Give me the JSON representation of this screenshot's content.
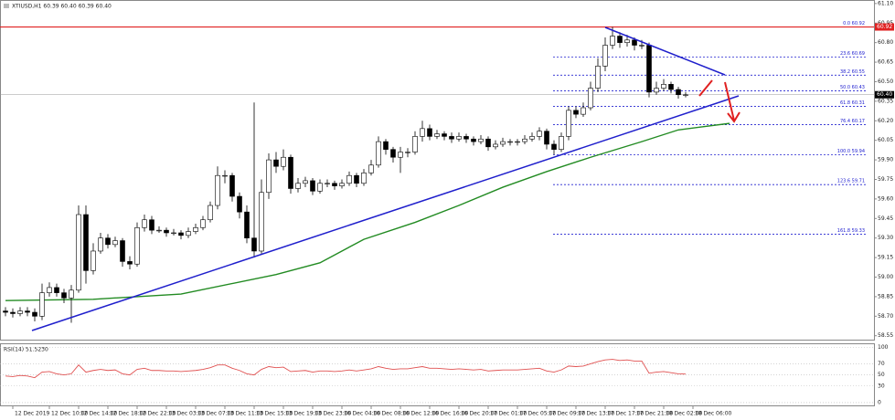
{
  "chart_data": [
    {
      "type": "candlestick",
      "title": "XTIUSD,H1  60.39 60.40 60.39 60.40",
      "up_color": "#ffffff",
      "down_color": "#000000",
      "open": [
        58.74,
        58.73,
        58.72,
        58.74,
        58.73,
        58.7,
        58.88,
        58.92,
        58.88,
        58.84,
        58.9,
        59.48,
        59.05,
        59.2,
        59.3,
        59.25,
        59.28,
        59.12,
        59.1,
        59.38,
        59.44,
        59.36,
        59.36,
        59.34,
        59.34,
        59.32,
        59.35,
        59.38,
        59.44,
        59.55,
        59.78,
        59.78,
        59.62,
        59.5,
        59.3,
        59.2,
        59.65,
        59.9,
        59.85,
        59.92,
        59.68,
        59.72,
        59.74,
        59.66,
        59.72,
        59.72,
        59.7,
        59.72,
        59.78,
        59.72,
        59.8,
        59.86,
        60.04,
        59.98,
        59.92,
        59.96,
        59.96,
        60.08,
        60.14,
        60.08,
        60.1,
        60.08,
        60.06,
        60.08,
        60.06,
        60.04,
        60.06,
        60.0,
        60.02,
        60.04,
        60.04,
        60.04,
        60.06,
        60.08,
        60.12,
        60.02,
        59.98,
        60.08,
        60.28,
        60.25,
        60.3,
        60.45,
        60.62,
        60.78,
        60.85,
        60.8,
        60.82,
        60.78,
        60.78,
        60.42,
        60.45,
        60.48,
        60.44,
        60.4
      ],
      "high": [
        58.77,
        58.76,
        58.77,
        58.77,
        58.76,
        58.95,
        58.96,
        58.95,
        58.91,
        58.94,
        59.55,
        59.55,
        59.26,
        59.34,
        59.33,
        59.31,
        59.3,
        59.16,
        59.42,
        59.48,
        59.47,
        59.39,
        59.38,
        59.37,
        59.36,
        59.38,
        59.41,
        59.47,
        59.58,
        59.85,
        59.82,
        59.8,
        59.65,
        59.55,
        60.34,
        59.75,
        59.95,
        59.96,
        59.98,
        59.94,
        59.76,
        59.77,
        59.76,
        59.75,
        59.75,
        59.74,
        59.75,
        59.81,
        59.8,
        59.83,
        59.9,
        60.08,
        60.06,
        60.0,
        60.0,
        59.99,
        60.12,
        60.2,
        60.17,
        60.13,
        60.12,
        60.11,
        60.11,
        60.1,
        60.08,
        60.09,
        60.08,
        60.05,
        60.07,
        60.06,
        60.06,
        60.09,
        60.11,
        60.15,
        60.14,
        60.05,
        60.11,
        60.31,
        60.31,
        60.34,
        60.5,
        60.68,
        60.84,
        60.92,
        60.88,
        60.86,
        60.84,
        60.82,
        60.8,
        60.5,
        60.52,
        60.5,
        60.46,
        60.42
      ],
      "low": [
        58.7,
        58.69,
        58.7,
        58.7,
        58.66,
        58.67,
        58.85,
        58.85,
        58.8,
        58.65,
        58.88,
        58.95,
        59.02,
        59.18,
        59.22,
        59.23,
        59.08,
        59.06,
        59.08,
        59.35,
        59.33,
        59.34,
        59.31,
        59.32,
        59.29,
        59.3,
        59.33,
        59.36,
        59.42,
        59.52,
        59.72,
        59.58,
        59.45,
        59.26,
        59.15,
        59.18,
        59.6,
        59.8,
        59.82,
        59.64,
        59.65,
        59.69,
        59.63,
        59.64,
        59.69,
        59.67,
        59.68,
        59.7,
        59.69,
        59.7,
        59.78,
        59.84,
        59.94,
        59.88,
        59.8,
        59.92,
        59.94,
        60.04,
        60.05,
        60.06,
        60.05,
        60.03,
        60.04,
        60.03,
        60.01,
        60.02,
        59.97,
        59.98,
        60.0,
        60.01,
        60.01,
        60.02,
        60.04,
        60.05,
        59.98,
        59.94,
        59.96,
        60.05,
        60.22,
        60.23,
        60.28,
        60.42,
        60.58,
        60.75,
        60.76,
        60.77,
        60.74,
        60.75,
        60.38,
        60.4,
        60.43,
        60.41,
        60.37,
        60.38
      ],
      "close": [
        58.73,
        58.72,
        58.74,
        58.73,
        58.7,
        58.88,
        58.92,
        58.88,
        58.84,
        58.9,
        59.48,
        59.05,
        59.2,
        59.3,
        59.25,
        59.28,
        59.12,
        59.1,
        59.38,
        59.44,
        59.36,
        59.36,
        59.34,
        59.34,
        59.32,
        59.35,
        59.38,
        59.44,
        59.55,
        59.78,
        59.78,
        59.62,
        59.5,
        59.3,
        59.2,
        59.65,
        59.9,
        59.85,
        59.92,
        59.68,
        59.72,
        59.74,
        59.66,
        59.72,
        59.72,
        59.7,
        59.72,
        59.78,
        59.72,
        59.8,
        59.86,
        60.04,
        59.98,
        59.92,
        59.96,
        59.96,
        60.08,
        60.14,
        60.08,
        60.1,
        60.08,
        60.06,
        60.08,
        60.06,
        60.04,
        60.06,
        60.0,
        60.02,
        60.04,
        60.04,
        60.04,
        60.06,
        60.08,
        60.12,
        60.02,
        59.98,
        60.08,
        60.28,
        60.25,
        60.3,
        60.45,
        60.62,
        60.78,
        60.85,
        60.8,
        60.82,
        60.78,
        60.78,
        60.42,
        60.45,
        60.48,
        60.44,
        60.4,
        60.4
      ],
      "ma": {
        "color": "#228b22",
        "x": [
          0,
          12,
          24,
          37,
          43,
          49,
          56,
          62,
          68,
          74,
          80,
          87,
          92,
          99
        ],
        "values": [
          58.82,
          58.83,
          58.87,
          59.02,
          59.11,
          59.29,
          59.42,
          59.55,
          59.69,
          59.81,
          59.92,
          60.04,
          60.13,
          60.18
        ]
      },
      "ylim": [
        58.52,
        61.12
      ],
      "yticks": [
        {
          "value": 61.1,
          "label": "61.10"
        },
        {
          "value": 60.95,
          "label": "60.95"
        },
        {
          "value": 60.8,
          "label": "60.80"
        },
        {
          "value": 60.65,
          "label": "60.65"
        },
        {
          "value": 60.5,
          "label": "60.50"
        },
        {
          "value": 60.35,
          "label": "60.35"
        },
        {
          "value": 60.2,
          "label": "60.20"
        },
        {
          "value": 60.05,
          "label": "60.05"
        },
        {
          "value": 59.9,
          "label": "59.90"
        },
        {
          "value": 59.75,
          "label": "59.75"
        },
        {
          "value": 59.6,
          "label": "59.60"
        },
        {
          "value": 59.45,
          "label": "59.45"
        },
        {
          "value": 59.3,
          "label": "59.30"
        },
        {
          "value": 59.15,
          "label": "59.15"
        },
        {
          "value": 59.0,
          "label": "59.00"
        },
        {
          "value": 58.85,
          "label": "58.85"
        },
        {
          "value": 58.7,
          "label": "58.70"
        },
        {
          "value": 58.55,
          "label": "58.55"
        }
      ],
      "xticks": [
        {
          "value": 1,
          "label": "12 Dec 2019"
        },
        {
          "value": 6,
          "label": "12 Dec 10:00"
        },
        {
          "value": 10,
          "label": "12 Dec 14:00"
        },
        {
          "value": 14,
          "label": "12 Dec 18:00"
        },
        {
          "value": 18,
          "label": "12 Dec 22:00"
        },
        {
          "value": 22,
          "label": "13 Dec 03:00"
        },
        {
          "value": 26,
          "label": "13 Dec 07:00"
        },
        {
          "value": 30,
          "label": "13 Dec 11:00"
        },
        {
          "value": 34,
          "label": "13 Dec 15:00"
        },
        {
          "value": 38,
          "label": "13 Dec 19:00"
        },
        {
          "value": 42,
          "label": "13 Dec 23:00"
        },
        {
          "value": 46,
          "label": "16 Dec 04:00"
        },
        {
          "value": 50,
          "label": "16 Dec 08:00"
        },
        {
          "value": 54,
          "label": "16 Dec 12:00"
        },
        {
          "value": 58,
          "label": "16 Dec 16:00"
        },
        {
          "value": 62,
          "label": "16 Dec 20:00"
        },
        {
          "value": 66,
          "label": "17 Dec 01:00"
        },
        {
          "value": 70,
          "label": "17 Dec 05:00"
        },
        {
          "value": 74,
          "label": "17 Dec 09:00"
        },
        {
          "value": 78,
          "label": "17 Dec 13:00"
        },
        {
          "value": 82,
          "label": "17 Dec 17:00"
        },
        {
          "value": 86,
          "label": "17 Dec 21:00"
        },
        {
          "value": 90,
          "label": "18 Dec 02:00"
        },
        {
          "value": 94,
          "label": "18 Dec 06:00"
        }
      ],
      "fib_color": "#2323d0",
      "fib_levels": [
        {
          "value": 60.92,
          "label": "0.0 60.92"
        },
        {
          "value": 60.69,
          "label": "23.6 60.69"
        },
        {
          "value": 60.55,
          "label": "38.2 60.55"
        },
        {
          "value": 60.43,
          "label": "50.0 60.43"
        },
        {
          "value": 60.31,
          "label": "61.8 60.31"
        },
        {
          "value": 60.17,
          "label": "76.4 60.17"
        },
        {
          "value": 59.94,
          "label": "100.0 59.94"
        },
        {
          "value": 59.71,
          "label": "123.6 59.71"
        },
        {
          "value": 59.33,
          "label": "161.8 59.33"
        }
      ],
      "price_tags": [
        {
          "value": 60.92,
          "label": "60.92",
          "color": "#e02020"
        },
        {
          "value": 60.4,
          "label": "60.40",
          "color": "#000000"
        }
      ]
    },
    {
      "type": "line",
      "title": "RSI(14) 51.5230",
      "color": "#e05050",
      "values": [
        48,
        47,
        49,
        48,
        45,
        55,
        56,
        52,
        50,
        52,
        68,
        55,
        58,
        60,
        58,
        59,
        52,
        50,
        60,
        62,
        58,
        58,
        57,
        57,
        56,
        57,
        58,
        60,
        63,
        68,
        68,
        62,
        58,
        52,
        50,
        60,
        65,
        63,
        64,
        56,
        57,
        58,
        55,
        57,
        57,
        56,
        57,
        59,
        57,
        59,
        61,
        65,
        62,
        60,
        61,
        61,
        63,
        65,
        62,
        62,
        61,
        60,
        61,
        60,
        59,
        60,
        57,
        58,
        59,
        59,
        59,
        60,
        61,
        62,
        57,
        55,
        59,
        66,
        65,
        66,
        70,
        74,
        77,
        78,
        76,
        77,
        75,
        75,
        53,
        55,
        56,
        54,
        52,
        51.52
      ],
      "ylim": [
        -5,
        107
      ],
      "yticks": [
        0,
        30,
        50,
        70,
        100
      ]
    }
  ]
}
